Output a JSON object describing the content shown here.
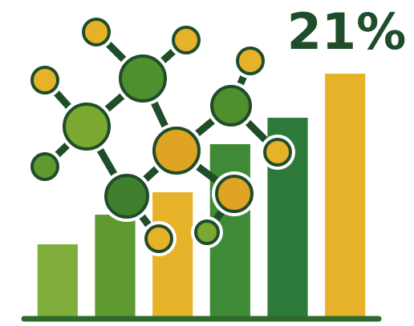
{
  "chart_data": {
    "type": "bar",
    "annotation": "21%",
    "categories": [
      null,
      null,
      null,
      null,
      null,
      null
    ],
    "values": [
      93,
      130,
      158,
      218,
      251,
      306
    ],
    "colors": [
      "#7fae3c",
      "#5f9a30",
      "#e6b22a",
      "#3f8a36",
      "#2d7a3a",
      "#e6b22a"
    ],
    "ylim": [
      0,
      320
    ],
    "baseline_color": "#2f6a2c"
  }
}
